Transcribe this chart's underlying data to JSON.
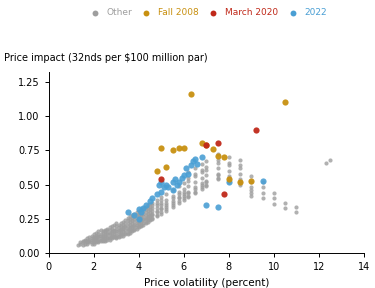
{
  "ylabel_text": "Price impact (32nds per $100 million par)",
  "xlabel": "Price volatility (percent)",
  "xlim": [
    0,
    14
  ],
  "ylim": [
    0,
    1.32
  ],
  "xticks": [
    0,
    2,
    4,
    6,
    8,
    10,
    12,
    14
  ],
  "yticks": [
    0,
    0.25,
    0.5,
    0.75,
    1.0,
    1.25
  ],
  "colors": {
    "other": "#9e9e9e",
    "fall2008": "#c89010",
    "march2020": "#c0291a",
    "y2022": "#4a9fd4"
  },
  "legend_labels": [
    "Other",
    "Fall 2008",
    "March 2020",
    "2022"
  ],
  "background": "#ffffff",
  "other_xy": [
    [
      1.3,
      0.06
    ],
    [
      1.4,
      0.07
    ],
    [
      1.4,
      0.08
    ],
    [
      1.5,
      0.06
    ],
    [
      1.5,
      0.09
    ],
    [
      1.5,
      0.08
    ],
    [
      1.6,
      0.07
    ],
    [
      1.6,
      0.1
    ],
    [
      1.6,
      0.09
    ],
    [
      1.7,
      0.08
    ],
    [
      1.7,
      0.11
    ],
    [
      1.7,
      0.09
    ],
    [
      1.7,
      0.07
    ],
    [
      1.8,
      0.09
    ],
    [
      1.8,
      0.12
    ],
    [
      1.8,
      0.1
    ],
    [
      1.8,
      0.08
    ],
    [
      1.9,
      0.1
    ],
    [
      1.9,
      0.13
    ],
    [
      1.9,
      0.11
    ],
    [
      1.9,
      0.08
    ],
    [
      1.9,
      0.07
    ],
    [
      2.0,
      0.08
    ],
    [
      2.0,
      0.11
    ],
    [
      2.0,
      0.14
    ],
    [
      2.0,
      0.09
    ],
    [
      2.0,
      0.12
    ],
    [
      2.0,
      0.07
    ],
    [
      2.0,
      0.1
    ],
    [
      2.1,
      0.09
    ],
    [
      2.1,
      0.12
    ],
    [
      2.1,
      0.15
    ],
    [
      2.1,
      0.1
    ],
    [
      2.1,
      0.08
    ],
    [
      2.1,
      0.11
    ],
    [
      2.1,
      0.13
    ],
    [
      2.2,
      0.1
    ],
    [
      2.2,
      0.13
    ],
    [
      2.2,
      0.16
    ],
    [
      2.2,
      0.09
    ],
    [
      2.2,
      0.12
    ],
    [
      2.2,
      0.08
    ],
    [
      2.2,
      0.14
    ],
    [
      2.3,
      0.11
    ],
    [
      2.3,
      0.14
    ],
    [
      2.3,
      0.17
    ],
    [
      2.3,
      0.1
    ],
    [
      2.3,
      0.09
    ],
    [
      2.3,
      0.13
    ],
    [
      2.4,
      0.1
    ],
    [
      2.4,
      0.13
    ],
    [
      2.4,
      0.16
    ],
    [
      2.4,
      0.1
    ],
    [
      2.4,
      0.12
    ],
    [
      2.4,
      0.15
    ],
    [
      2.4,
      0.09
    ],
    [
      2.5,
      0.11
    ],
    [
      2.5,
      0.14
    ],
    [
      2.5,
      0.17
    ],
    [
      2.5,
      0.1
    ],
    [
      2.5,
      0.13
    ],
    [
      2.5,
      0.09
    ],
    [
      2.5,
      0.16
    ],
    [
      2.6,
      0.12
    ],
    [
      2.6,
      0.15
    ],
    [
      2.6,
      0.18
    ],
    [
      2.6,
      0.11
    ],
    [
      2.6,
      0.14
    ],
    [
      2.6,
      0.1
    ],
    [
      2.6,
      0.17
    ],
    [
      2.7,
      0.12
    ],
    [
      2.7,
      0.15
    ],
    [
      2.7,
      0.19
    ],
    [
      2.7,
      0.11
    ],
    [
      2.7,
      0.14
    ],
    [
      2.7,
      0.1
    ],
    [
      2.7,
      0.17
    ],
    [
      2.8,
      0.13
    ],
    [
      2.8,
      0.16
    ],
    [
      2.8,
      0.2
    ],
    [
      2.8,
      0.12
    ],
    [
      2.8,
      0.15
    ],
    [
      2.8,
      0.11
    ],
    [
      2.8,
      0.18
    ],
    [
      2.9,
      0.14
    ],
    [
      2.9,
      0.17
    ],
    [
      2.9,
      0.21
    ],
    [
      2.9,
      0.13
    ],
    [
      2.9,
      0.16
    ],
    [
      2.9,
      0.12
    ],
    [
      3.0,
      0.13
    ],
    [
      3.0,
      0.16
    ],
    [
      3.0,
      0.2
    ],
    [
      3.0,
      0.12
    ],
    [
      3.0,
      0.15
    ],
    [
      3.0,
      0.11
    ],
    [
      3.0,
      0.18
    ],
    [
      3.0,
      0.22
    ],
    [
      3.1,
      0.14
    ],
    [
      3.1,
      0.17
    ],
    [
      3.1,
      0.21
    ],
    [
      3.1,
      0.13
    ],
    [
      3.1,
      0.16
    ],
    [
      3.1,
      0.12
    ],
    [
      3.1,
      0.19
    ],
    [
      3.2,
      0.15
    ],
    [
      3.2,
      0.18
    ],
    [
      3.2,
      0.22
    ],
    [
      3.2,
      0.14
    ],
    [
      3.2,
      0.17
    ],
    [
      3.2,
      0.13
    ],
    [
      3.2,
      0.2
    ],
    [
      3.3,
      0.16
    ],
    [
      3.3,
      0.19
    ],
    [
      3.3,
      0.23
    ],
    [
      3.3,
      0.14
    ],
    [
      3.3,
      0.18
    ],
    [
      3.3,
      0.13
    ],
    [
      3.3,
      0.21
    ],
    [
      3.4,
      0.17
    ],
    [
      3.4,
      0.2
    ],
    [
      3.4,
      0.24
    ],
    [
      3.4,
      0.15
    ],
    [
      3.4,
      0.19
    ],
    [
      3.4,
      0.14
    ],
    [
      3.4,
      0.22
    ],
    [
      3.5,
      0.15
    ],
    [
      3.5,
      0.18
    ],
    [
      3.5,
      0.22
    ],
    [
      3.5,
      0.26
    ],
    [
      3.5,
      0.14
    ],
    [
      3.5,
      0.17
    ],
    [
      3.5,
      0.2
    ],
    [
      3.5,
      0.24
    ],
    [
      3.6,
      0.16
    ],
    [
      3.6,
      0.19
    ],
    [
      3.6,
      0.23
    ],
    [
      3.6,
      0.27
    ],
    [
      3.6,
      0.15
    ],
    [
      3.6,
      0.18
    ],
    [
      3.6,
      0.21
    ],
    [
      3.6,
      0.25
    ],
    [
      3.7,
      0.17
    ],
    [
      3.7,
      0.2
    ],
    [
      3.7,
      0.24
    ],
    [
      3.7,
      0.28
    ],
    [
      3.7,
      0.16
    ],
    [
      3.7,
      0.19
    ],
    [
      3.7,
      0.22
    ],
    [
      3.7,
      0.26
    ],
    [
      3.8,
      0.18
    ],
    [
      3.8,
      0.21
    ],
    [
      3.8,
      0.25
    ],
    [
      3.8,
      0.29
    ],
    [
      3.8,
      0.17
    ],
    [
      3.8,
      0.2
    ],
    [
      3.8,
      0.23
    ],
    [
      3.8,
      0.27
    ],
    [
      3.9,
      0.19
    ],
    [
      3.9,
      0.22
    ],
    [
      3.9,
      0.26
    ],
    [
      3.9,
      0.3
    ],
    [
      3.9,
      0.18
    ],
    [
      3.9,
      0.21
    ],
    [
      3.9,
      0.24
    ],
    [
      3.9,
      0.28
    ],
    [
      4.0,
      0.2
    ],
    [
      4.0,
      0.23
    ],
    [
      4.0,
      0.27
    ],
    [
      4.0,
      0.31
    ],
    [
      4.0,
      0.19
    ],
    [
      4.0,
      0.22
    ],
    [
      4.0,
      0.25
    ],
    [
      4.0,
      0.29
    ],
    [
      4.1,
      0.21
    ],
    [
      4.1,
      0.24
    ],
    [
      4.1,
      0.28
    ],
    [
      4.1,
      0.32
    ],
    [
      4.1,
      0.2
    ],
    [
      4.1,
      0.23
    ],
    [
      4.1,
      0.26
    ],
    [
      4.1,
      0.3
    ],
    [
      4.2,
      0.22
    ],
    [
      4.2,
      0.25
    ],
    [
      4.2,
      0.29
    ],
    [
      4.2,
      0.33
    ],
    [
      4.2,
      0.21
    ],
    [
      4.2,
      0.24
    ],
    [
      4.2,
      0.27
    ],
    [
      4.2,
      0.31
    ],
    [
      4.3,
      0.23
    ],
    [
      4.3,
      0.26
    ],
    [
      4.3,
      0.3
    ],
    [
      4.3,
      0.34
    ],
    [
      4.3,
      0.22
    ],
    [
      4.3,
      0.25
    ],
    [
      4.3,
      0.28
    ],
    [
      4.3,
      0.32
    ],
    [
      4.4,
      0.24
    ],
    [
      4.4,
      0.27
    ],
    [
      4.4,
      0.31
    ],
    [
      4.4,
      0.35
    ],
    [
      4.4,
      0.23
    ],
    [
      4.4,
      0.26
    ],
    [
      4.4,
      0.29
    ],
    [
      4.4,
      0.33
    ],
    [
      4.5,
      0.25
    ],
    [
      4.5,
      0.28
    ],
    [
      4.5,
      0.32
    ],
    [
      4.5,
      0.36
    ],
    [
      4.5,
      0.24
    ],
    [
      4.5,
      0.27
    ],
    [
      4.5,
      0.3
    ],
    [
      4.5,
      0.34
    ],
    [
      4.6,
      0.26
    ],
    [
      4.6,
      0.29
    ],
    [
      4.6,
      0.33
    ],
    [
      4.6,
      0.37
    ],
    [
      4.6,
      0.25
    ],
    [
      4.6,
      0.28
    ],
    [
      4.6,
      0.31
    ],
    [
      4.6,
      0.35
    ],
    [
      4.8,
      0.28
    ],
    [
      4.8,
      0.31
    ],
    [
      4.8,
      0.35
    ],
    [
      4.8,
      0.39
    ],
    [
      4.8,
      0.27
    ],
    [
      4.8,
      0.3
    ],
    [
      4.8,
      0.33
    ],
    [
      4.8,
      0.37
    ],
    [
      5.0,
      0.3
    ],
    [
      5.0,
      0.33
    ],
    [
      5.0,
      0.37
    ],
    [
      5.0,
      0.41
    ],
    [
      5.0,
      0.29
    ],
    [
      5.0,
      0.32
    ],
    [
      5.0,
      0.35
    ],
    [
      5.0,
      0.39
    ],
    [
      5.2,
      0.32
    ],
    [
      5.2,
      0.35
    ],
    [
      5.2,
      0.39
    ],
    [
      5.2,
      0.43
    ],
    [
      5.2,
      0.31
    ],
    [
      5.2,
      0.34
    ],
    [
      5.2,
      0.37
    ],
    [
      5.5,
      0.35
    ],
    [
      5.5,
      0.38
    ],
    [
      5.5,
      0.42
    ],
    [
      5.5,
      0.46
    ],
    [
      5.5,
      0.34
    ],
    [
      5.5,
      0.37
    ],
    [
      5.5,
      0.4
    ],
    [
      5.8,
      0.38
    ],
    [
      5.8,
      0.41
    ],
    [
      5.8,
      0.45
    ],
    [
      5.8,
      0.49
    ],
    [
      5.8,
      0.37
    ],
    [
      5.8,
      0.4
    ],
    [
      5.8,
      0.43
    ],
    [
      6.0,
      0.4
    ],
    [
      6.0,
      0.43
    ],
    [
      6.0,
      0.47
    ],
    [
      6.0,
      0.51
    ],
    [
      6.0,
      0.39
    ],
    [
      6.0,
      0.42
    ],
    [
      6.0,
      0.45
    ],
    [
      6.2,
      0.42
    ],
    [
      6.2,
      0.45
    ],
    [
      6.2,
      0.49
    ],
    [
      6.2,
      0.53
    ],
    [
      6.2,
      0.41
    ],
    [
      6.2,
      0.44
    ],
    [
      6.2,
      0.55
    ],
    [
      6.2,
      0.59
    ],
    [
      6.5,
      0.45
    ],
    [
      6.5,
      0.48
    ],
    [
      6.5,
      0.52
    ],
    [
      6.5,
      0.56
    ],
    [
      6.5,
      0.44
    ],
    [
      6.5,
      0.47
    ],
    [
      6.5,
      0.58
    ],
    [
      6.5,
      0.62
    ],
    [
      6.8,
      0.48
    ],
    [
      6.8,
      0.51
    ],
    [
      6.8,
      0.55
    ],
    [
      6.8,
      0.59
    ],
    [
      6.8,
      0.47
    ],
    [
      6.8,
      0.5
    ],
    [
      6.8,
      0.61
    ],
    [
      6.8,
      0.65
    ],
    [
      7.0,
      0.5
    ],
    [
      7.0,
      0.53
    ],
    [
      7.0,
      0.57
    ],
    [
      7.0,
      0.61
    ],
    [
      7.0,
      0.49
    ],
    [
      7.0,
      0.52
    ],
    [
      7.0,
      0.63
    ],
    [
      7.0,
      0.67
    ],
    [
      7.5,
      0.55
    ],
    [
      7.5,
      0.58
    ],
    [
      7.5,
      0.62
    ],
    [
      7.5,
      0.66
    ],
    [
      7.5,
      0.54
    ],
    [
      7.5,
      0.57
    ],
    [
      7.5,
      0.68
    ],
    [
      7.5,
      0.72
    ],
    [
      8.0,
      0.53
    ],
    [
      8.0,
      0.56
    ],
    [
      8.0,
      0.6
    ],
    [
      8.0,
      0.64
    ],
    [
      8.0,
      0.52
    ],
    [
      8.0,
      0.55
    ],
    [
      8.0,
      0.66
    ],
    [
      8.0,
      0.7
    ],
    [
      8.5,
      0.51
    ],
    [
      8.5,
      0.54
    ],
    [
      8.5,
      0.58
    ],
    [
      8.5,
      0.62
    ],
    [
      8.5,
      0.5
    ],
    [
      8.5,
      0.53
    ],
    [
      8.5,
      0.64
    ],
    [
      8.5,
      0.68
    ],
    [
      9.0,
      0.44
    ],
    [
      9.0,
      0.48
    ],
    [
      9.0,
      0.52
    ],
    [
      9.0,
      0.56
    ],
    [
      9.0,
      0.42
    ],
    [
      9.0,
      0.46
    ],
    [
      9.5,
      0.4
    ],
    [
      9.5,
      0.44
    ],
    [
      9.5,
      0.48
    ],
    [
      9.5,
      0.52
    ],
    [
      10.0,
      0.36
    ],
    [
      10.0,
      0.4
    ],
    [
      10.0,
      0.44
    ],
    [
      10.5,
      0.33
    ],
    [
      10.5,
      0.37
    ],
    [
      11.0,
      0.3
    ],
    [
      11.0,
      0.34
    ],
    [
      12.3,
      0.66
    ],
    [
      12.5,
      0.68
    ]
  ],
  "fall2008_xy": [
    [
      4.8,
      0.6
    ],
    [
      5.0,
      0.77
    ],
    [
      5.2,
      0.63
    ],
    [
      5.5,
      0.75
    ],
    [
      5.8,
      0.77
    ],
    [
      6.0,
      0.77
    ],
    [
      6.3,
      1.16
    ],
    [
      6.8,
      0.8
    ],
    [
      7.0,
      0.79
    ],
    [
      7.3,
      0.76
    ],
    [
      7.5,
      0.71
    ],
    [
      7.8,
      0.7
    ],
    [
      8.0,
      0.54
    ],
    [
      8.5,
      0.52
    ],
    [
      9.0,
      0.53
    ],
    [
      10.5,
      1.1
    ]
  ],
  "march2020_xy": [
    [
      5.0,
      0.54
    ],
    [
      7.0,
      0.79
    ],
    [
      7.5,
      0.8
    ],
    [
      7.8,
      0.43
    ],
    [
      9.2,
      0.9
    ]
  ],
  "y2022_xy": [
    [
      3.5,
      0.3
    ],
    [
      3.8,
      0.28
    ],
    [
      4.0,
      0.25
    ],
    [
      4.0,
      0.32
    ],
    [
      4.1,
      0.3
    ],
    [
      4.2,
      0.33
    ],
    [
      4.3,
      0.35
    ],
    [
      4.5,
      0.38
    ],
    [
      4.6,
      0.4
    ],
    [
      4.8,
      0.43
    ],
    [
      4.9,
      0.5
    ],
    [
      5.0,
      0.45
    ],
    [
      5.0,
      0.52
    ],
    [
      5.1,
      0.48
    ],
    [
      5.2,
      0.5
    ],
    [
      5.3,
      0.48
    ],
    [
      5.5,
      0.46
    ],
    [
      5.5,
      0.52
    ],
    [
      5.6,
      0.54
    ],
    [
      5.7,
      0.5
    ],
    [
      5.8,
      0.52
    ],
    [
      5.9,
      0.55
    ],
    [
      6.0,
      0.57
    ],
    [
      6.1,
      0.62
    ],
    [
      6.2,
      0.58
    ],
    [
      6.3,
      0.64
    ],
    [
      6.4,
      0.67
    ],
    [
      6.5,
      0.69
    ],
    [
      6.6,
      0.65
    ],
    [
      6.8,
      0.7
    ],
    [
      7.0,
      0.35
    ],
    [
      7.5,
      0.34
    ],
    [
      8.0,
      0.52
    ],
    [
      9.5,
      0.53
    ]
  ],
  "marker_size_other": 9,
  "marker_size_colored": 20
}
